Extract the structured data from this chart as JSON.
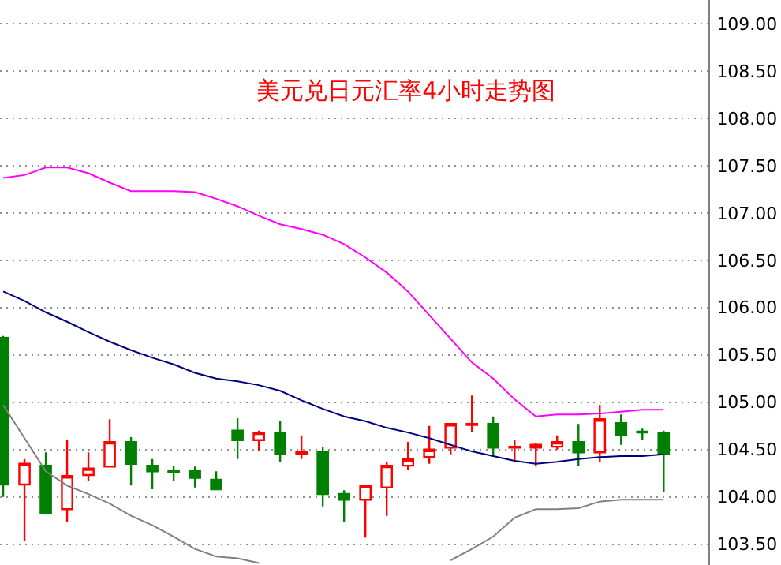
{
  "chart_data": {
    "type": "candlestick",
    "title": "美元兑日元汇率4小时走势图",
    "categories": [
      null,
      null,
      null,
      null,
      null,
      null,
      null,
      null,
      null,
      null,
      null,
      null,
      null,
      null,
      null,
      null,
      null,
      null,
      null,
      null,
      null,
      null,
      null,
      null,
      null,
      null,
      null,
      null,
      null,
      null,
      null,
      null
    ],
    "ohlc": [
      [
        105.68,
        105.7,
        104.0,
        104.13
      ],
      [
        104.13,
        104.4,
        103.53,
        104.35
      ],
      [
        104.33,
        104.47,
        103.83,
        103.83
      ],
      [
        103.87,
        104.6,
        103.73,
        104.22
      ],
      [
        104.23,
        104.47,
        104.17,
        104.3
      ],
      [
        104.32,
        104.82,
        104.32,
        104.58
      ],
      [
        104.58,
        104.63,
        104.12,
        104.35
      ],
      [
        104.33,
        104.4,
        104.08,
        104.27
      ],
      [
        104.27,
        104.33,
        104.17,
        104.26
      ],
      [
        104.27,
        104.32,
        104.1,
        104.2
      ],
      [
        104.18,
        104.27,
        104.07,
        104.08
      ],
      [
        104.7,
        104.83,
        104.4,
        104.6
      ],
      [
        104.6,
        104.7,
        104.48,
        104.68
      ],
      [
        104.68,
        104.8,
        104.37,
        104.45
      ],
      [
        104.45,
        104.65,
        104.4,
        104.48
      ],
      [
        104.47,
        104.53,
        103.9,
        104.03
      ],
      [
        104.03,
        104.07,
        103.73,
        103.97
      ],
      [
        103.97,
        104.13,
        103.57,
        104.12
      ],
      [
        104.1,
        104.37,
        103.8,
        104.33
      ],
      [
        104.33,
        104.58,
        104.28,
        104.4
      ],
      [
        104.42,
        104.75,
        104.35,
        104.5
      ],
      [
        104.52,
        104.78,
        104.45,
        104.77
      ],
      [
        104.76,
        105.07,
        104.68,
        104.77
      ],
      [
        104.77,
        104.85,
        104.43,
        104.52
      ],
      [
        104.52,
        104.6,
        104.37,
        104.53
      ],
      [
        104.52,
        104.57,
        104.32,
        104.55
      ],
      [
        104.53,
        104.65,
        104.5,
        104.58
      ],
      [
        104.58,
        104.77,
        104.33,
        104.47
      ],
      [
        104.47,
        104.97,
        104.37,
        104.82
      ],
      [
        104.78,
        104.87,
        104.55,
        104.65
      ],
      [
        104.69,
        104.72,
        104.6,
        104.68
      ],
      [
        104.67,
        104.7,
        104.05,
        104.45
      ]
    ],
    "series": [
      {
        "type": "line",
        "color": "#ff00ff",
        "values": [
          107.37,
          107.4,
          107.48,
          107.48,
          107.42,
          107.32,
          107.23,
          107.23,
          107.23,
          107.22,
          107.15,
          107.07,
          106.97,
          106.88,
          106.83,
          106.77,
          106.67,
          106.53,
          106.37,
          106.17,
          105.92,
          105.67,
          105.42,
          105.25,
          105.03,
          104.85,
          104.87,
          104.87,
          104.88,
          104.9,
          104.92,
          104.92
        ]
      },
      {
        "type": "line",
        "color": "#000080",
        "values": [
          106.17,
          106.07,
          105.95,
          105.85,
          105.74,
          105.64,
          105.55,
          105.47,
          105.4,
          105.31,
          105.25,
          105.22,
          105.18,
          105.12,
          105.02,
          104.93,
          104.85,
          104.8,
          104.73,
          104.68,
          104.62,
          104.55,
          104.48,
          104.43,
          104.38,
          104.35,
          104.37,
          104.4,
          104.42,
          104.43,
          104.43,
          104.45
        ]
      },
      {
        "type": "line",
        "color": "#808080",
        "values": [
          104.97,
          104.62,
          104.27,
          104.12,
          104.03,
          103.93,
          103.8,
          103.7,
          103.58,
          103.45,
          103.37,
          103.35,
          103.3,
          null,
          null,
          null,
          null,
          null,
          null,
          null,
          null,
          103.33,
          103.45,
          103.58,
          103.78,
          103.87,
          103.87,
          103.88,
          103.95,
          103.97,
          103.97,
          103.97
        ]
      }
    ],
    "ylim": [
      103.28,
      109.25
    ],
    "yticks": [
      {
        "value": 103.5,
        "label": "103.50"
      },
      {
        "value": 104,
        "label": "104.00"
      },
      {
        "value": 104.5,
        "label": "104.50"
      },
      {
        "value": 105,
        "label": "105.00"
      },
      {
        "value": 105.5,
        "label": "105.50"
      },
      {
        "value": 106,
        "label": "106.00"
      },
      {
        "value": 106.5,
        "label": "106.50"
      },
      {
        "value": 107,
        "label": "107.00"
      },
      {
        "value": 107.5,
        "label": "107.50"
      },
      {
        "value": 108,
        "label": "108.00"
      },
      {
        "value": 108.5,
        "label": "108.50"
      },
      {
        "value": 109,
        "label": "109.00"
      }
    ],
    "grid": "y",
    "tick_labels": "y"
  }
}
